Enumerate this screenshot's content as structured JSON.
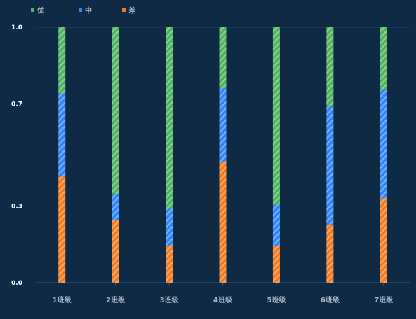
{
  "chart_data": {
    "type": "bar",
    "stacked": true,
    "categories": [
      "1班级",
      "2班级",
      "3班级",
      "4班级",
      "5班级",
      "6班级",
      "7班级"
    ],
    "series": [
      {
        "name": "差",
        "color": "#f47b20",
        "values": [
          0.415,
          0.247,
          0.143,
          0.473,
          0.145,
          0.228,
          0.33
        ]
      },
      {
        "name": "中",
        "color": "#2f86f6",
        "values": [
          0.325,
          0.098,
          0.145,
          0.287,
          0.16,
          0.462,
          0.427
        ]
      },
      {
        "name": "优",
        "color": "#52b35e",
        "values": [
          0.26,
          0.655,
          0.712,
          0.24,
          0.695,
          0.31,
          0.243
        ]
      }
    ],
    "legend_order": [
      "优",
      "中",
      "差"
    ],
    "yticks": [
      "1.0",
      "0.7",
      "0.3",
      "0.0"
    ],
    "ylim": [
      0,
      1
    ],
    "legend_position": "top-left",
    "grid": true,
    "title": "",
    "xlabel": "",
    "ylabel": ""
  }
}
